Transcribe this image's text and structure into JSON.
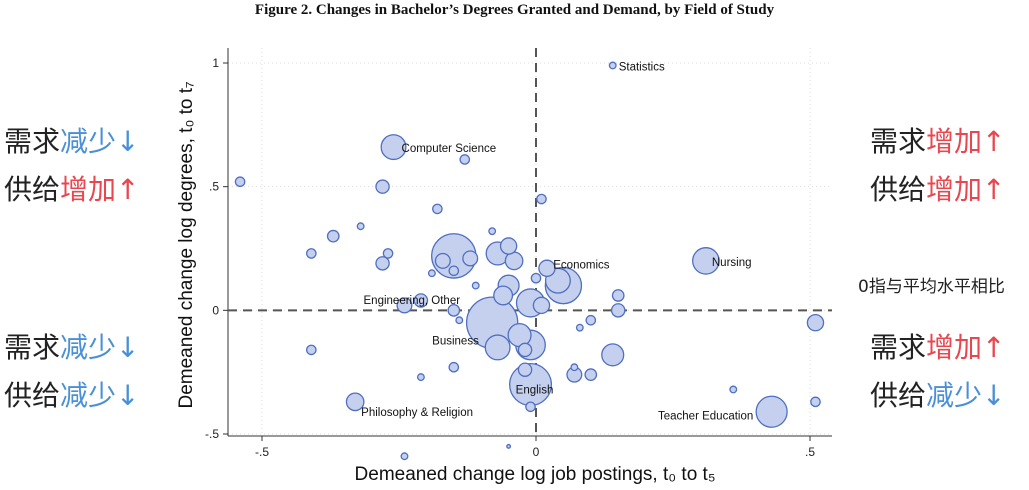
{
  "title": "Figure 2. Changes in Bachelor’s Degrees Granted and Demand, by Field of Study",
  "chart_data": {
    "type": "scatter",
    "xlabel": "Demeaned change log job postings, t₀ to t₅",
    "ylabel": "Demeaned change log degrees, t₀ to t₇",
    "xlim": [
      -0.5,
      0.5
    ],
    "ylim": [
      -0.5,
      1
    ],
    "xticks": [
      -0.5,
      0,
      0.5
    ],
    "xtick_labels": [
      "-.5",
      "0",
      ".5"
    ],
    "yticks": [
      -0.5,
      0,
      0.5,
      1
    ],
    "ytick_labels": [
      "-.5",
      "0",
      ".5",
      "1"
    ],
    "grid": true,
    "reference_lines": {
      "x": 0,
      "y": 0
    },
    "colors": {
      "fill": "#c5d0ee",
      "stroke": "#4f6fc0",
      "line": "#555555"
    },
    "points": [
      {
        "x": 0.14,
        "y": 0.99,
        "size": 1,
        "label": "Statistics"
      },
      {
        "x": -0.26,
        "y": 0.66,
        "size": 14,
        "label": "Computer Science"
      },
      {
        "x": -0.13,
        "y": 0.61,
        "size": 2,
        "label": ""
      },
      {
        "x": -0.54,
        "y": 0.52,
        "size": 2,
        "label": ""
      },
      {
        "x": -0.28,
        "y": 0.5,
        "size": 4,
        "label": ""
      },
      {
        "x": 0.01,
        "y": 0.45,
        "size": 2,
        "label": ""
      },
      {
        "x": -0.18,
        "y": 0.41,
        "size": 2,
        "label": ""
      },
      {
        "x": -0.37,
        "y": 0.3,
        "size": 3,
        "label": ""
      },
      {
        "x": -0.32,
        "y": 0.34,
        "size": 1,
        "label": ""
      },
      {
        "x": -0.08,
        "y": 0.32,
        "size": 1,
        "label": ""
      },
      {
        "x": -0.41,
        "y": 0.23,
        "size": 2,
        "label": ""
      },
      {
        "x": -0.27,
        "y": 0.23,
        "size": 2,
        "label": ""
      },
      {
        "x": -0.28,
        "y": 0.19,
        "size": 4,
        "label": ""
      },
      {
        "x": -0.15,
        "y": 0.22,
        "size": 45,
        "label": "Engineering, Other"
      },
      {
        "x": -0.17,
        "y": 0.2,
        "size": 5,
        "label": ""
      },
      {
        "x": -0.12,
        "y": 0.21,
        "size": 5,
        "label": ""
      },
      {
        "x": -0.07,
        "y": 0.23,
        "size": 12,
        "label": ""
      },
      {
        "x": -0.05,
        "y": 0.26,
        "size": 6,
        "label": ""
      },
      {
        "x": -0.04,
        "y": 0.2,
        "size": 7,
        "label": ""
      },
      {
        "x": -0.19,
        "y": 0.15,
        "size": 1,
        "label": ""
      },
      {
        "x": -0.15,
        "y": 0.16,
        "size": 2,
        "label": ""
      },
      {
        "x": -0.11,
        "y": 0.1,
        "size": 1,
        "label": ""
      },
      {
        "x": -0.05,
        "y": 0.1,
        "size": 10,
        "label": ""
      },
      {
        "x": -0.06,
        "y": 0.06,
        "size": 8,
        "label": ""
      },
      {
        "x": 0.0,
        "y": 0.13,
        "size": 2,
        "label": ""
      },
      {
        "x": 0.02,
        "y": 0.17,
        "size": 6,
        "label": ""
      },
      {
        "x": 0.04,
        "y": 0.12,
        "size": 14,
        "label": ""
      },
      {
        "x": 0.05,
        "y": 0.1,
        "size": 30,
        "label": "Economics"
      },
      {
        "x": 0.31,
        "y": 0.2,
        "size": 16,
        "label": "Nursing"
      },
      {
        "x": 0.15,
        "y": 0.06,
        "size": 3,
        "label": ""
      },
      {
        "x": -0.21,
        "y": 0.04,
        "size": 4,
        "label": ""
      },
      {
        "x": -0.24,
        "y": 0.02,
        "size": 5,
        "label": ""
      },
      {
        "x": -0.01,
        "y": 0.03,
        "size": 18,
        "label": ""
      },
      {
        "x": 0.01,
        "y": 0.02,
        "size": 6,
        "label": ""
      },
      {
        "x": 0.15,
        "y": 0.0,
        "size": 4,
        "label": ""
      },
      {
        "x": 0.1,
        "y": -0.04,
        "size": 2,
        "label": ""
      },
      {
        "x": 0.51,
        "y": -0.05,
        "size": 6,
        "label": ""
      },
      {
        "x": -0.15,
        "y": 0.0,
        "size": 3,
        "label": ""
      },
      {
        "x": -0.14,
        "y": -0.04,
        "size": 1,
        "label": ""
      },
      {
        "x": -0.08,
        "y": -0.05,
        "size": 60,
        "label": "Business"
      },
      {
        "x": -0.07,
        "y": -0.15,
        "size": 14,
        "label": ""
      },
      {
        "x": -0.01,
        "y": -0.14,
        "size": 20,
        "label": ""
      },
      {
        "x": -0.03,
        "y": -0.1,
        "size": 12,
        "label": ""
      },
      {
        "x": -0.02,
        "y": -0.16,
        "size": 4,
        "label": ""
      },
      {
        "x": 0.08,
        "y": -0.07,
        "size": 1,
        "label": ""
      },
      {
        "x": 0.14,
        "y": -0.18,
        "size": 11,
        "label": ""
      },
      {
        "x": 0.07,
        "y": -0.23,
        "size": 1,
        "label": ""
      },
      {
        "x": 0.07,
        "y": -0.26,
        "size": 5,
        "label": ""
      },
      {
        "x": 0.1,
        "y": -0.26,
        "size": 3,
        "label": ""
      },
      {
        "x": -0.41,
        "y": -0.16,
        "size": 2,
        "label": ""
      },
      {
        "x": -0.15,
        "y": -0.23,
        "size": 2,
        "label": ""
      },
      {
        "x": -0.21,
        "y": -0.27,
        "size": 1,
        "label": ""
      },
      {
        "x": -0.02,
        "y": -0.24,
        "size": 4,
        "label": ""
      },
      {
        "x": -0.01,
        "y": -0.3,
        "size": 40,
        "label": "English"
      },
      {
        "x": -0.33,
        "y": -0.37,
        "size": 7,
        "label": "Philosophy & Religion"
      },
      {
        "x": -0.01,
        "y": -0.39,
        "size": 2,
        "label": ""
      },
      {
        "x": 0.36,
        "y": -0.32,
        "size": 1,
        "label": ""
      },
      {
        "x": 0.43,
        "y": -0.41,
        "size": 22,
        "label": "Teacher Education"
      },
      {
        "x": 0.51,
        "y": -0.37,
        "size": 2,
        "label": ""
      },
      {
        "x": -0.05,
        "y": -0.55,
        "size": 0.3,
        "label": ""
      },
      {
        "x": -0.24,
        "y": -0.59,
        "size": 1,
        "label": ""
      }
    ]
  },
  "annotations": {
    "top_left": {
      "line1_a": "需求",
      "line1_b": "减少↓",
      "line2_a": "供给",
      "line2_b": "增加↑"
    },
    "top_right": {
      "line1_a": "需求",
      "line1_b": "增加↑",
      "line2_a": "供给",
      "line2_b": "增加↑"
    },
    "bottom_left": {
      "line1_a": "需求",
      "line1_b": "减少↓",
      "line2_a": "供给",
      "line2_b": "减少↓"
    },
    "bottom_right": {
      "line1_a": "需求",
      "line1_b": "增加↑",
      "line2_a": "供给",
      "line2_b": "减少↓"
    },
    "baseline_note": "0指与平均水平相比"
  }
}
